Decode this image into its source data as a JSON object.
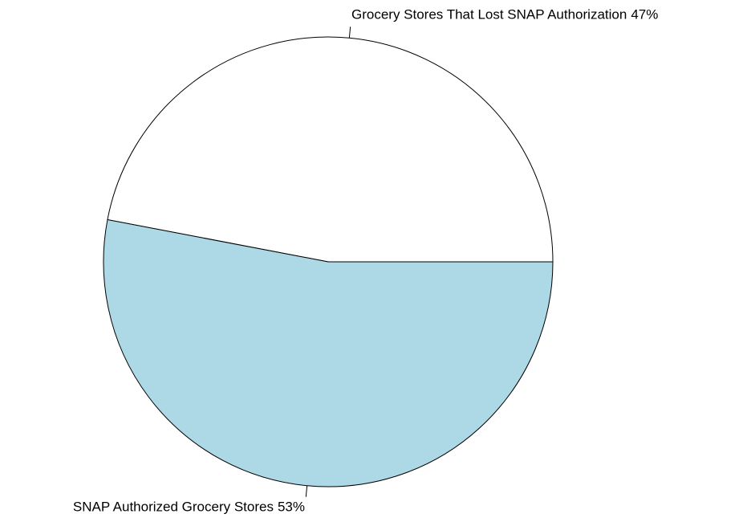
{
  "chart_data": {
    "type": "pie",
    "categories": [
      "Grocery Stores That Lost SNAP Authorization",
      "SNAP Authorized Grocery Stores"
    ],
    "values": [
      47,
      53
    ],
    "value_labels": [
      "47%",
      "53%"
    ],
    "colors": [
      "#ffffff",
      "#add8e6"
    ]
  }
}
